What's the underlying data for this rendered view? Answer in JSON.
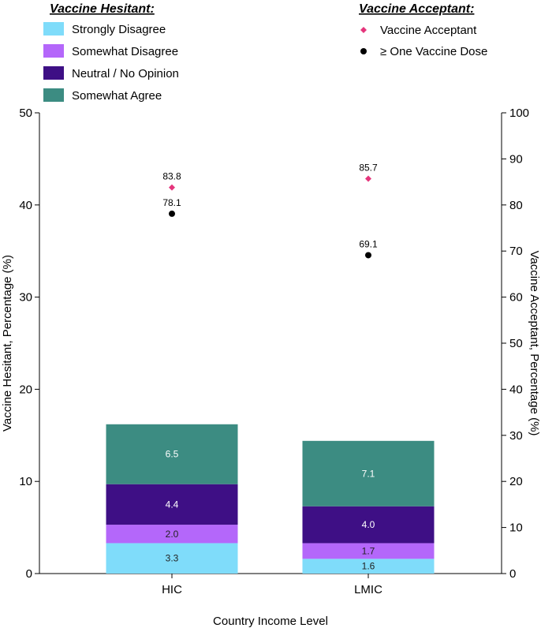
{
  "chart_data": {
    "type": "bar",
    "stacked": true,
    "categories": [
      "HIC",
      "LMIC"
    ],
    "xlabel": "Country Income Level",
    "ylabel_left": "Vaccine Hesitant, Percentage (%)",
    "ylabel_right": "Vaccine Acceptant, Percentage (%)",
    "ylim_left": [
      0,
      50
    ],
    "ylim_right": [
      0,
      100
    ],
    "yticks_left": [
      0,
      10,
      20,
      30,
      40,
      50
    ],
    "yticks_right": [
      0,
      10,
      20,
      30,
      40,
      50,
      60,
      70,
      80,
      90,
      100
    ],
    "grid": false,
    "legend_hesitant_title": "Vaccine Hesitant:",
    "legend_acceptant_title": "Vaccine Acceptant:",
    "series": [
      {
        "name": "Strongly Disagree",
        "color": "#7fdcfa",
        "label_color": "#222222",
        "values": [
          3.3,
          1.6
        ]
      },
      {
        "name": "Somewhat Disagree",
        "color": "#b467fa",
        "label_color": "#222222",
        "values": [
          2.0,
          1.7
        ]
      },
      {
        "name": "Neutral / No Opinion",
        "color": "#3e0f85",
        "label_color": "#ffffff",
        "values": [
          4.4,
          4.0
        ]
      },
      {
        "name": "Somewhat Agree",
        "color": "#3c8c82",
        "label_color": "#ffffff",
        "values": [
          6.5,
          7.1
        ]
      }
    ],
    "value_labels": [
      [
        "3.3",
        "1.6"
      ],
      [
        "2.0",
        "1.7"
      ],
      [
        "4.4",
        "4.0"
      ],
      [
        "6.5",
        "7.1"
      ]
    ],
    "points": [
      {
        "name": "Vaccine Acceptant",
        "marker": "diamond",
        "color": "#e5357c",
        "values": [
          83.8,
          85.7
        ],
        "labels": [
          "83.8",
          "85.7"
        ]
      },
      {
        "name": "≥ One Vaccine Dose",
        "marker": "circle",
        "color": "#000000",
        "values": [
          78.1,
          69.1
        ],
        "labels": [
          "78.1",
          "69.1"
        ]
      }
    ]
  }
}
